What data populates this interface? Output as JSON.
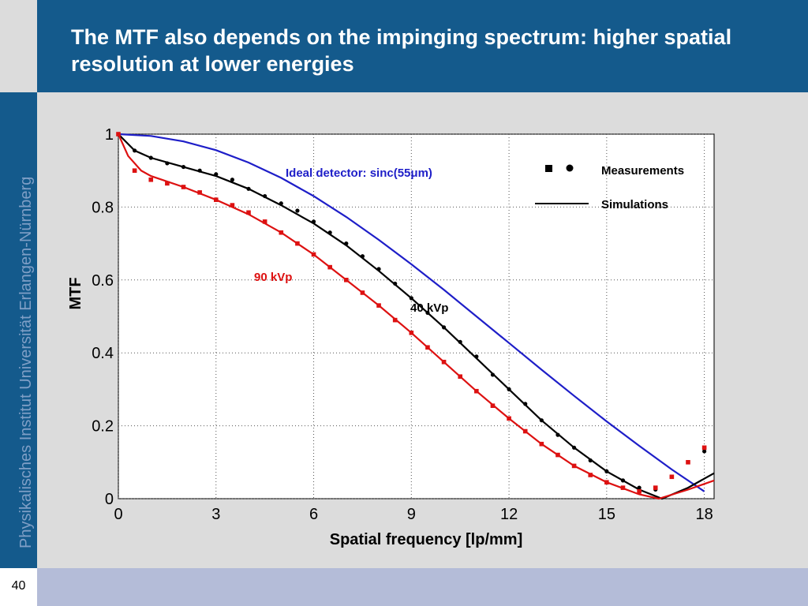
{
  "slide": {
    "title": "The MTF also depends on the impinging spectrum: higher spatial resolution at lower energies",
    "sidebar_text": "Physikalisches Institut    Universität Erlangen-Nürnberg",
    "page_number": "40"
  },
  "colors": {
    "header": "#145a8c",
    "footer": "#b4bcd8",
    "ideal": "#1e1ec8",
    "kvp40": "#000000",
    "kvp90": "#dd1111"
  },
  "chart_data": {
    "type": "line",
    "xlabel": "Spatial frequency [lp/mm]",
    "ylabel": "MTF",
    "xlim": [
      0,
      18.3
    ],
    "ylim": [
      0,
      1.0
    ],
    "x_ticks": [
      "0",
      "3",
      "6",
      "9",
      "12",
      "15",
      "18"
    ],
    "y_ticks": [
      "0",
      "0.2",
      "0.4",
      "0.6",
      "0.8",
      "1"
    ],
    "grid": true,
    "legend_position": "top-right",
    "legend": {
      "measurements": "Measurements",
      "simulations": "Simulations"
    },
    "annotations": {
      "ideal": "Ideal detector: sinc(55μm)",
      "kvp90": "90 kVp",
      "kvp40": "40 kVp"
    },
    "series": [
      {
        "name": "Ideal detector: sinc(55μm)",
        "kind": "simulation",
        "x": [
          0,
          1,
          2,
          3,
          4,
          5,
          6,
          7,
          8,
          9,
          10,
          11,
          12,
          13,
          14,
          15,
          16,
          17,
          18
        ],
        "y": [
          1.0,
          0.995,
          0.98,
          0.956,
          0.922,
          0.88,
          0.83,
          0.773,
          0.71,
          0.643,
          0.573,
          0.5,
          0.427,
          0.354,
          0.282,
          0.212,
          0.145,
          0.08,
          0.02
        ]
      },
      {
        "name": "40 kVp",
        "kind": "simulation",
        "x": [
          0,
          0.5,
          1,
          2,
          3,
          4,
          5,
          6,
          7,
          8,
          9,
          10,
          11,
          12,
          13,
          14,
          15,
          16,
          16.7,
          17.5,
          18.3
        ],
        "y": [
          1.0,
          0.955,
          0.935,
          0.91,
          0.885,
          0.85,
          0.805,
          0.755,
          0.695,
          0.625,
          0.55,
          0.47,
          0.385,
          0.3,
          0.215,
          0.14,
          0.075,
          0.025,
          0.0,
          0.03,
          0.07
        ]
      },
      {
        "name": "90 kVp",
        "kind": "simulation",
        "x": [
          0,
          0.3,
          0.7,
          1,
          2,
          3,
          4,
          5,
          6,
          7,
          8,
          9,
          10,
          11,
          12,
          13,
          14,
          15,
          16,
          16.6,
          17.5,
          18.3
        ],
        "y": [
          1.0,
          0.94,
          0.9,
          0.885,
          0.855,
          0.82,
          0.78,
          0.73,
          0.67,
          0.6,
          0.53,
          0.455,
          0.375,
          0.295,
          0.22,
          0.15,
          0.09,
          0.045,
          0.012,
          0.0,
          0.025,
          0.05
        ]
      },
      {
        "name": "40 kVp",
        "kind": "measurement",
        "x": [
          0,
          0.5,
          1,
          1.5,
          2,
          2.5,
          3,
          3.5,
          4,
          4.5,
          5,
          5.5,
          6,
          6.5,
          7,
          7.5,
          8,
          8.5,
          9,
          9.5,
          10,
          10.5,
          11,
          11.5,
          12,
          12.5,
          13,
          13.5,
          14,
          14.5,
          15,
          15.5,
          16,
          16.5,
          17,
          17.5,
          18
        ],
        "y": [
          1.0,
          0.955,
          0.935,
          0.92,
          0.91,
          0.9,
          0.89,
          0.875,
          0.85,
          0.83,
          0.81,
          0.79,
          0.76,
          0.73,
          0.7,
          0.665,
          0.63,
          0.59,
          0.55,
          0.51,
          0.47,
          0.43,
          0.39,
          0.34,
          0.3,
          0.26,
          0.215,
          0.175,
          0.14,
          0.105,
          0.075,
          0.05,
          0.03,
          0.025,
          0.06,
          0.1,
          0.13
        ]
      },
      {
        "name": "90 kVp",
        "kind": "measurement",
        "x": [
          0,
          0.5,
          1,
          1.5,
          2,
          2.5,
          3,
          3.5,
          4,
          4.5,
          5,
          5.5,
          6,
          6.5,
          7,
          7.5,
          8,
          8.5,
          9,
          9.5,
          10,
          10.5,
          11,
          11.5,
          12,
          12.5,
          13,
          13.5,
          14,
          14.5,
          15,
          15.5,
          16,
          16.5,
          17,
          17.5,
          18
        ],
        "y": [
          1.0,
          0.9,
          0.875,
          0.865,
          0.855,
          0.84,
          0.82,
          0.805,
          0.785,
          0.76,
          0.73,
          0.7,
          0.67,
          0.635,
          0.6,
          0.565,
          0.53,
          0.49,
          0.455,
          0.415,
          0.375,
          0.335,
          0.295,
          0.255,
          0.22,
          0.185,
          0.15,
          0.12,
          0.09,
          0.065,
          0.045,
          0.03,
          0.02,
          0.03,
          0.06,
          0.1,
          0.14
        ]
      }
    ]
  }
}
